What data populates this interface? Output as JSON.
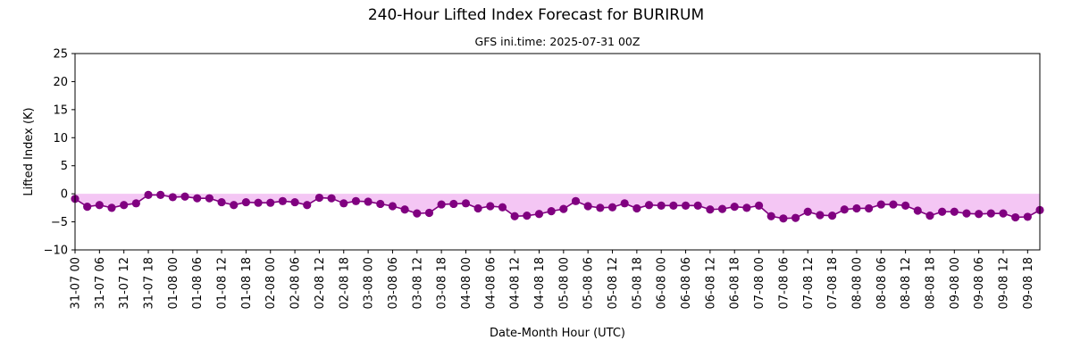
{
  "chart_data": {
    "type": "line",
    "title": "240-Hour Lifted Index Forecast for BURIRUM",
    "subtitle": "GFS ini.time: 2025-07-31 00Z",
    "xlabel": "Date-Month Hour (UTC)",
    "ylabel": "Lifted Index (K)",
    "ylim": [
      -10,
      25
    ],
    "yticks": [
      -10,
      -5,
      0,
      5,
      10,
      15,
      20,
      25
    ],
    "x_step_hours": 3,
    "x_tick_labels": [
      "31-07 00",
      "31-07 06",
      "31-07 12",
      "31-07 18",
      "01-08 00",
      "01-08 06",
      "01-08 12",
      "01-08 18",
      "02-08 00",
      "02-08 06",
      "02-08 12",
      "02-08 18",
      "03-08 00",
      "03-08 06",
      "03-08 12",
      "03-08 18",
      "04-08 00",
      "04-08 06",
      "04-08 12",
      "04-08 18",
      "05-08 00",
      "05-08 06",
      "05-08 12",
      "05-08 18",
      "06-08 00",
      "06-08 06",
      "06-08 12",
      "06-08 18",
      "07-08 00",
      "07-08 06",
      "07-08 12",
      "07-08 18",
      "08-08 00",
      "08-08 06",
      "08-08 12",
      "08-08 18",
      "09-08 00",
      "09-08 06",
      "09-08 12",
      "09-08 18"
    ],
    "grid": false,
    "fill_below_zero": true,
    "colors": {
      "line": "#800080",
      "fill": "#f4c6f4"
    },
    "values": [
      -0.9,
      -2.3,
      -2.0,
      -2.5,
      -2.0,
      -1.7,
      -0.2,
      -0.2,
      -0.6,
      -0.5,
      -0.8,
      -0.8,
      -1.5,
      -2.0,
      -1.5,
      -1.6,
      -1.6,
      -1.3,
      -1.5,
      -2.0,
      -0.7,
      -0.8,
      -1.7,
      -1.3,
      -1.4,
      -1.8,
      -2.2,
      -2.8,
      -3.5,
      -3.4,
      -1.9,
      -1.8,
      -1.7,
      -2.6,
      -2.2,
      -2.4,
      -4.0,
      -3.9,
      -3.6,
      -3.1,
      -2.7,
      -1.3,
      -2.2,
      -2.5,
      -2.4,
      -1.7,
      -2.6,
      -2.0,
      -2.1,
      -2.1,
      -2.1,
      -2.1,
      -2.8,
      -2.7,
      -2.3,
      -2.5,
      -2.1,
      -4.0,
      -4.4,
      -4.3,
      -3.2,
      -3.8,
      -3.9,
      -2.8,
      -2.6,
      -2.6,
      -1.9,
      -1.9,
      -2.1,
      -3.0,
      -3.9,
      -3.2,
      -3.2,
      -3.5,
      -3.6,
      -3.5,
      -3.5,
      -4.2,
      -4.1,
      -2.9
    ]
  }
}
